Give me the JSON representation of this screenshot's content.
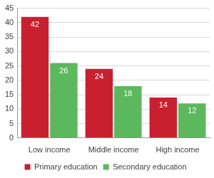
{
  "chart_data": {
    "type": "bar",
    "categories": [
      "Low income",
      "Middle income",
      "High income"
    ],
    "series": [
      {
        "name": "Primary education",
        "color": "#c8202f",
        "values": [
          42,
          24,
          14
        ]
      },
      {
        "name": "Secondary education",
        "color": "#5cb85c",
        "values": [
          26,
          18,
          12
        ]
      }
    ],
    "ylim": [
      0,
      45
    ],
    "yticks": [
      0,
      5,
      10,
      15,
      20,
      25,
      30,
      35,
      40,
      45
    ],
    "grid": true,
    "legend": "bottom",
    "data_labels": true
  }
}
